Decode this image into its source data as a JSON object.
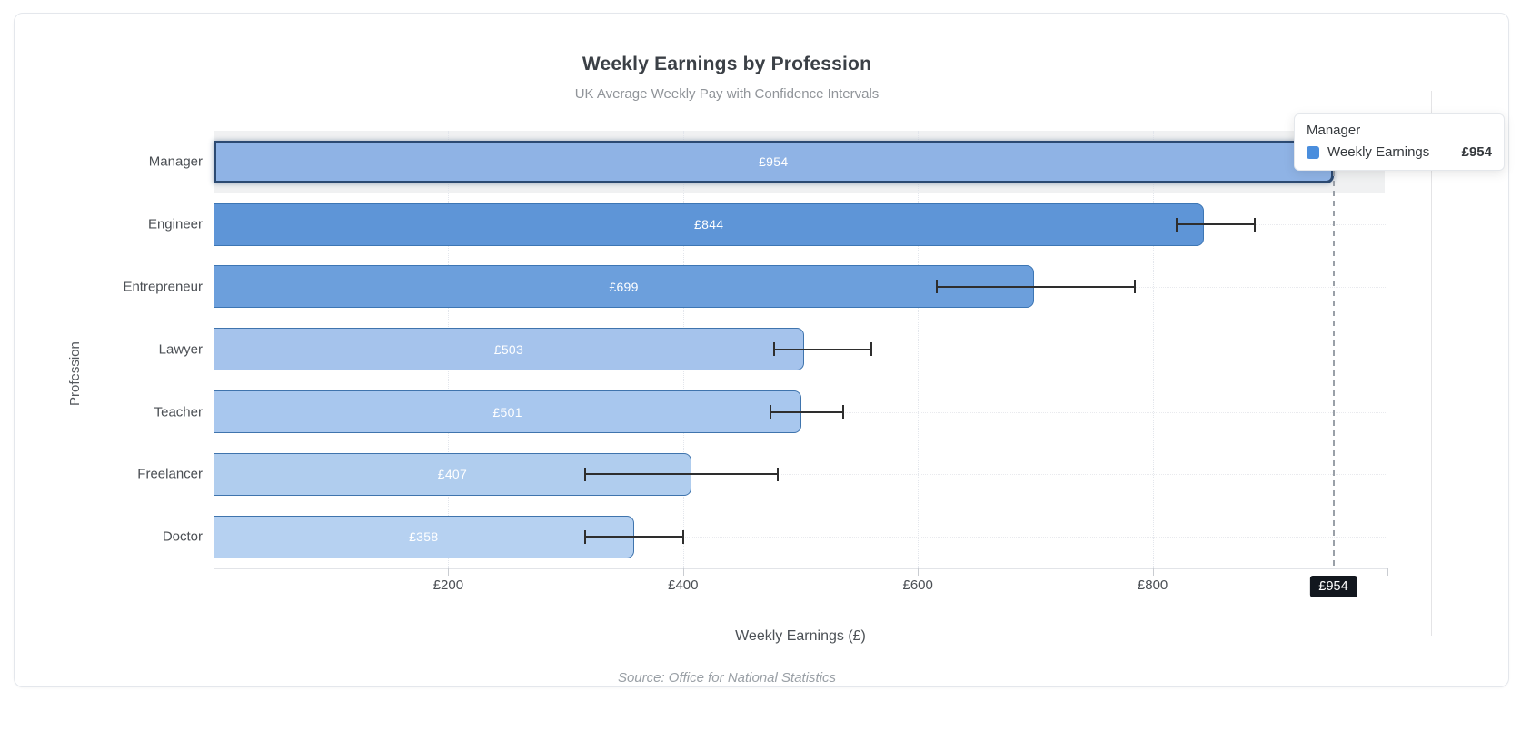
{
  "header": {
    "title": "Weekly Earnings by Profession",
    "subtitle": "UK Average Weekly Pay with Confidence Intervals"
  },
  "axes": {
    "y_title": "Profession",
    "x_title": "Weekly Earnings (£)"
  },
  "footer": {
    "source": "Source: Office for National Statistics"
  },
  "tooltip": {
    "title": "Manager",
    "series_name": "Weekly Earnings",
    "value": "£954",
    "swatch_color": "#4a8edd"
  },
  "axis_pointer": {
    "value": 954,
    "label": "£954",
    "label_bg": "#12171e",
    "line_color": "#9aa0a8"
  },
  "chart_data": {
    "type": "bar",
    "orientation": "horizontal",
    "title": "Weekly Earnings by Profession",
    "subtitle": "UK Average Weekly Pay with Confidence Intervals",
    "xlabel": "Weekly Earnings (£)",
    "ylabel": "Profession",
    "source": "Source: Office for National Statistics",
    "xlim": [
      0,
      1000
    ],
    "x_ticks": [
      200,
      400,
      600,
      800
    ],
    "x_tick_labels": [
      "£200",
      "£400",
      "£600",
      "£800"
    ],
    "grid": "dotted",
    "legend_position": "none",
    "categories": [
      "Manager",
      "Engineer",
      "Entrepreneur",
      "Lawyer",
      "Teacher",
      "Freelancer",
      "Doctor"
    ],
    "series": [
      {
        "name": "Weekly Earnings",
        "values": [
          954,
          844,
          699,
          503,
          501,
          407,
          358
        ],
        "value_labels": [
          "£954",
          "£844",
          "£699",
          "£503",
          "£501",
          "£407",
          "£358"
        ],
        "ci_low": [
          null,
          820,
          615,
          477,
          474,
          316,
          316
        ],
        "ci_high": [
          null,
          887,
          785,
          560,
          536,
          481,
          400
        ]
      }
    ],
    "bar_fills": [
      "#8fb3e5",
      "#5e95d7",
      "#6c9fdc",
      "#a5c3ec",
      "#a8c7ee",
      "#b0cdee",
      "#b6d1f1"
    ],
    "bar_borders": [
      "#2c4a72",
      "#3d76b4",
      "#3d76b4",
      "#3f74ad",
      "#3f74ad",
      "#3f74ad",
      "#3f74ad"
    ],
    "highlighted_index": 0,
    "error_bar_color": "#2e2e2e"
  }
}
